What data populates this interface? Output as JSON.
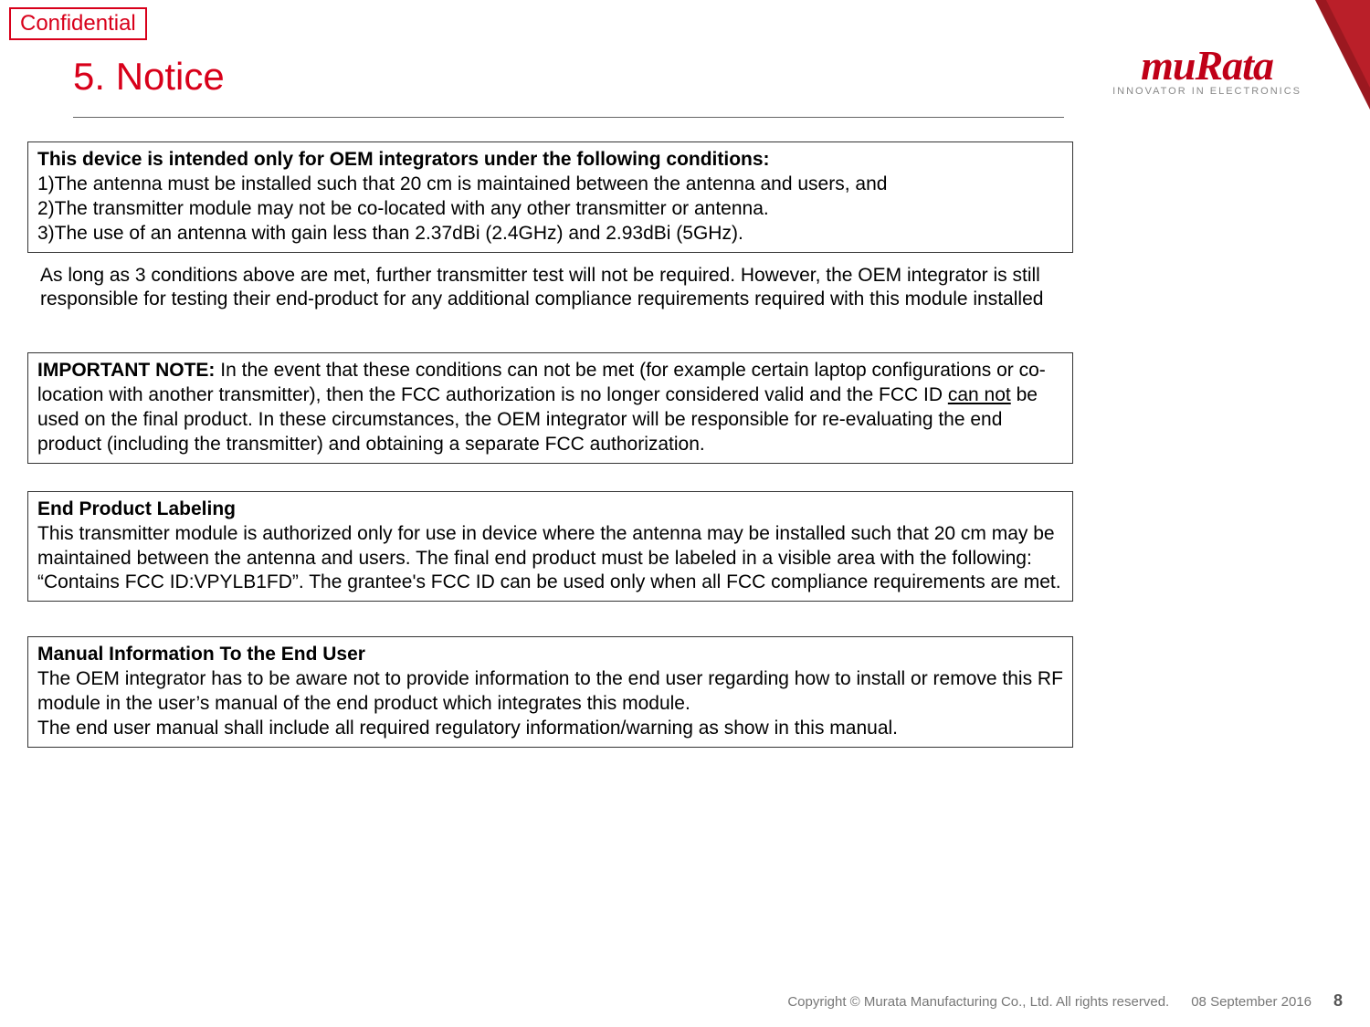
{
  "badge": "Confidential",
  "title": "5. Notice",
  "logo": {
    "main": "muRata",
    "tagline": "INNOVATOR IN ELECTRONICS"
  },
  "box1": {
    "heading": "This device is intended only for OEM integrators under the following conditions:",
    "line1": "1)The antenna must be installed such that 20 cm is maintained between the antenna and users, and",
    "line2": "2)The transmitter module may not be co-located with any other transmitter or antenna.",
    "line3": "3)The use of an antenna with gain less than 2.37dBi (2.4GHz) and 2.93dBi (5GHz)."
  },
  "para1": "As long as 3 conditions above are met, further transmitter test will not be required. However, the OEM integrator is still responsible for testing their end-product for any additional compliance requirements required with this module installed",
  "box2": {
    "lead": "IMPORTANT NOTE:",
    "part_a": " In the event that these conditions can not be met (for example certain laptop configurations or co-location with another transmitter), then the FCC authorization is no longer considered valid and the FCC ID ",
    "underlined": "can not",
    "part_b": " be used on the final product. In these circumstances, the OEM integrator will be responsible for re-evaluating the end product (including the transmitter) and obtaining a separate FCC authorization."
  },
  "box3": {
    "heading": "End Product Labeling",
    "body": "This transmitter module is authorized only for use in device where the antenna may be installed such that 20 cm may be maintained between the antenna and users. The final end product must be labeled in a visible area with the following: “Contains FCC ID:VPYLB1FD”. The grantee's FCC ID can be used only when all FCC compliance requirements are met."
  },
  "box4": {
    "heading": "Manual Information To the End User",
    "line1": "The OEM integrator has to be aware not to provide information to the end user regarding how to install or remove this RF module in the user’s manual of the end product which integrates this module.",
    "line2": "The end user manual shall include all required regulatory information/warning as show in this manual."
  },
  "footer": {
    "copyright": "Copyright © Murata Manufacturing Co., Ltd. All rights reserved.",
    "date": "08 September 2016",
    "page": "8"
  }
}
